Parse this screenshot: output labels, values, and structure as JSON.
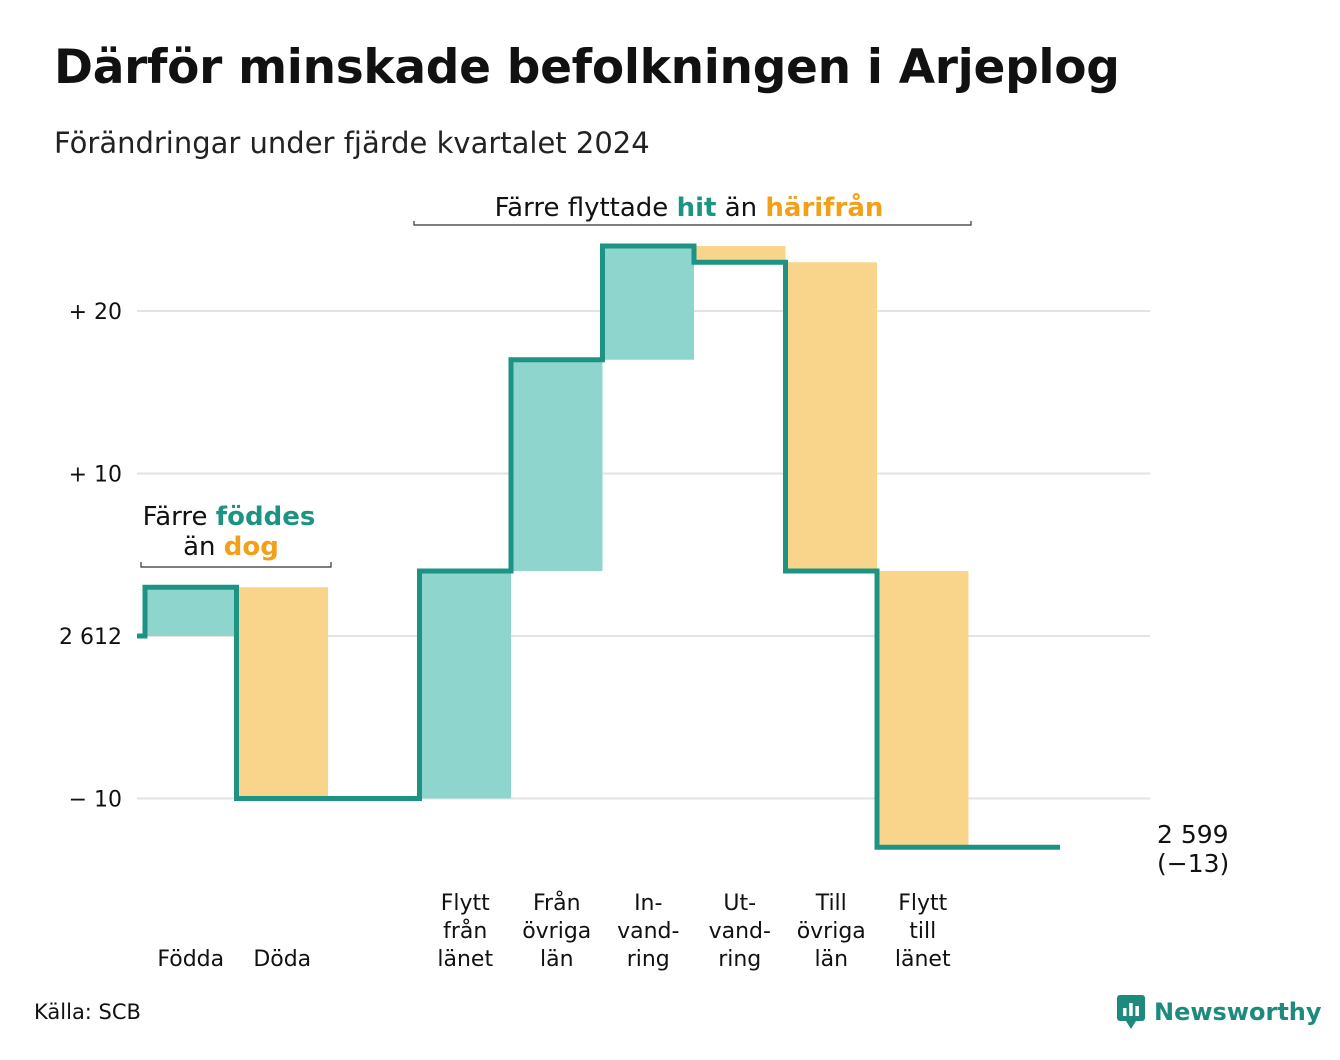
{
  "title": "Därför minskade befolkningen i Arjeplog",
  "subtitle": "Förändringar under fjärde kvartalet 2024",
  "source": "Källa: SCB",
  "brand": {
    "name": "Newsworthy",
    "icon": "newsworthy-logo-icon"
  },
  "colors": {
    "increase": "#8dd5cd",
    "decrease": "#f9d58c",
    "line": "#1d9384",
    "grid": "#e3e3e3",
    "teal_text": "#1d9384",
    "orange_text": "#f3a019"
  },
  "chart_data": {
    "type": "waterfall",
    "baseline_population": 2612,
    "end_population": 2599,
    "end_change": -13,
    "ylim": [
      -13,
      24
    ],
    "y_ticks": [
      {
        "value": 20,
        "label": "+ 20"
      },
      {
        "value": 10,
        "label": "+ 10"
      },
      {
        "value": 0,
        "label": "2 612"
      },
      {
        "value": -10,
        "label": "− 10"
      }
    ],
    "steps": [
      {
        "category": [
          "Födda"
        ],
        "change": 3,
        "kind": "increase"
      },
      {
        "category": [
          "Döda"
        ],
        "change": -13,
        "kind": "decrease"
      },
      {
        "category": [
          ""
        ],
        "change": 0,
        "kind": "gap"
      },
      {
        "category": [
          "Flytt",
          "från",
          "länet"
        ],
        "change": 14,
        "kind": "increase"
      },
      {
        "category": [
          "Från",
          "övriga",
          "län"
        ],
        "change": 13,
        "kind": "increase"
      },
      {
        "category": [
          "In-",
          "vand-",
          "ring"
        ],
        "change": 7,
        "kind": "increase"
      },
      {
        "category": [
          "Ut-",
          "vand-",
          "ring"
        ],
        "change": -1,
        "kind": "decrease"
      },
      {
        "category": [
          "Till",
          "övriga",
          "län"
        ],
        "change": -19,
        "kind": "decrease"
      },
      {
        "category": [
          "Flytt",
          "till",
          "länet"
        ],
        "change": -17,
        "kind": "decrease"
      },
      {
        "category": [
          ""
        ],
        "change": 0,
        "kind": "gap"
      }
    ],
    "end_label": {
      "value": "2 599",
      "change": "(−13)"
    },
    "annotations": [
      {
        "parts": [
          {
            "text": "Färre ",
            "style": "plain"
          },
          {
            "text": "föddes",
            "style": "teal"
          }
        ],
        "parts2": [
          {
            "text": "än ",
            "style": "plain"
          },
          {
            "text": "dog",
            "style": "orange"
          }
        ]
      },
      {
        "parts": [
          {
            "text": "Färre flyttade ",
            "style": "plain"
          },
          {
            "text": "hit",
            "style": "teal"
          },
          {
            "text": " än ",
            "style": "plain"
          },
          {
            "text": "härifrån",
            "style": "orange"
          }
        ]
      }
    ]
  }
}
